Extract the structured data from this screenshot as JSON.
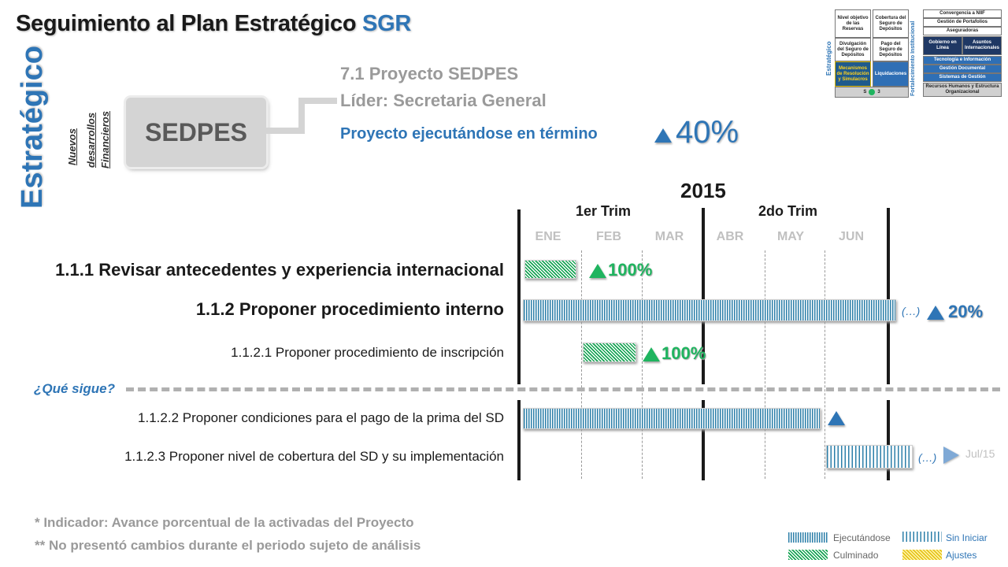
{
  "header": {
    "title_main": "Seguimiento al Plan Estratégico",
    "title_accent": "SGR"
  },
  "side": {
    "vertical_title": "Estratégico",
    "category_line1": "Nuevos",
    "category_line2": "desarrollos",
    "category_line3": "Financieros"
  },
  "project": {
    "box_label": "SEDPES",
    "name": "7.1 Proyecto SEDPES",
    "leader": "Líder: Secretaria General",
    "status_text": "Proyecto ejecutándose en término",
    "progress": "40%"
  },
  "timeline": {
    "year": "2015",
    "quarters": [
      "1er Trim",
      "2do Trim"
    ],
    "months": [
      "ENE",
      "FEB",
      "MAR",
      "ABR",
      "MAY",
      "JUN"
    ]
  },
  "tasks": [
    {
      "label": "1.1.1 Revisar antecedentes y experiencia internacional",
      "pct": "100%",
      "status": "Culminado"
    },
    {
      "label": "1.1.2 Proponer procedimiento interno",
      "pct": "20%",
      "ellipsis": "(…)",
      "status": "Ejecutándose"
    },
    {
      "label": "1.1.2.1 Proponer procedimiento de inscripción",
      "pct": "100%",
      "status": "Culminado"
    }
  ],
  "next_label": "¿Qué sigue?",
  "next_tasks": [
    {
      "label": "1.1.2.2 Proponer condiciones para el pago de la prima del SD",
      "status": "Ejecutándose"
    },
    {
      "label": "1.1.2.3 Proponer nivel de cobertura del SD y su implementación",
      "ellipsis": "(…)",
      "end_label": "Jul/15",
      "status": "Sin Iniciar"
    }
  ],
  "footnotes": [
    "* Indicador: Avance porcentual de la activadas del Proyecto",
    "** No presentó cambios durante el periodo sujeto de análisis"
  ],
  "legend": {
    "executing": "Ejecutándose",
    "not_started": "Sin Iniciar",
    "done": "Culminado",
    "adjust": "Ajustes"
  },
  "mini_map": {
    "left_vertical": "Estratégico",
    "right_vertical": "Fortalecimiento Institucional",
    "cells": [
      "Nivel objetivo de las Reservas",
      "Cobertura del Seguro de Depósitos",
      "Divulgación del Seguro de Depósitos",
      "Pago del Seguro de Depósitos",
      "Mecanismos de Resolución y Simulacros",
      "Liquidaciones"
    ],
    "right_items": [
      "Convergencia a NIIF",
      "Gestión de Portafolios",
      "Aseguradoras",
      "Gobierno en Línea",
      "Asuntos Internacionales",
      "Tecnología e Información",
      "Gestión Documental",
      "Sistemas de Gestión",
      "Recursos Humanos y Estructura Organizacional"
    ],
    "bottom_left": "S",
    "bottom_right": "3"
  },
  "colors": {
    "accent": "#2e75b6",
    "done_green": "#1fb45f",
    "exec_blue": "#2c7fa9",
    "adjust_yellow": "#e6c21a"
  }
}
